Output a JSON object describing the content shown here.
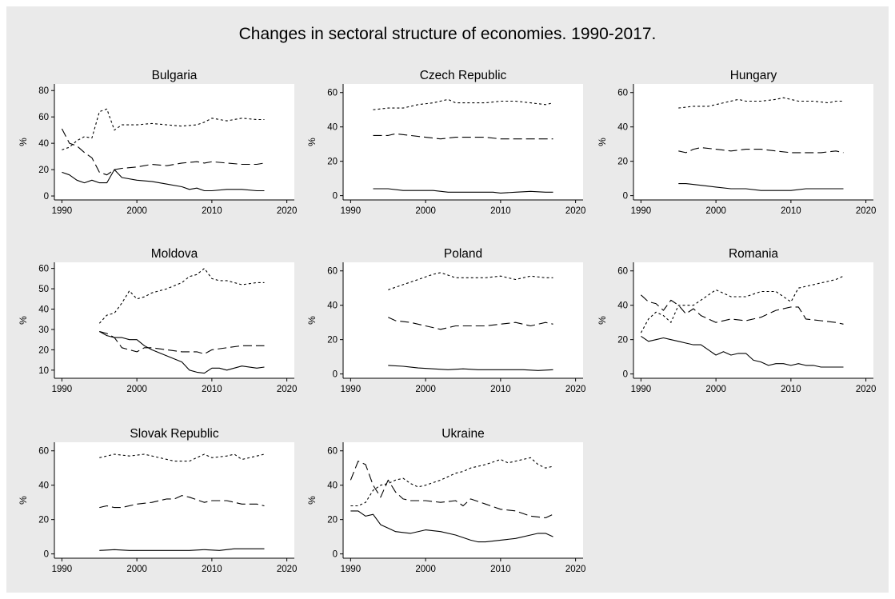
{
  "title": "Changes in sectoral structure of economies. 1990-2017.",
  "chart_data": [
    {
      "type": "line",
      "title": "Bulgaria",
      "ylabel": "%",
      "xlabel": "",
      "xticks": [
        1990,
        2000,
        2010,
        2020
      ],
      "yticks": [
        0,
        20,
        40,
        60,
        80
      ],
      "xlim": [
        1989,
        2021
      ],
      "ylim": [
        -3,
        85
      ],
      "grid": false,
      "series": [
        {
          "style": "short-dash",
          "x": [
            1990,
            1991,
            1992,
            1993,
            1994,
            1995,
            1996,
            1997,
            1998,
            2000,
            2002,
            2004,
            2006,
            2008,
            2009,
            2010,
            2012,
            2014,
            2016,
            2017
          ],
          "y": [
            35,
            37,
            42,
            45,
            44,
            64,
            66,
            50,
            54,
            54,
            55,
            54,
            53,
            54,
            56,
            59,
            57,
            59,
            58,
            58
          ]
        },
        {
          "style": "long-dash",
          "x": [
            1990,
            1991,
            1992,
            1993,
            1994,
            1995,
            1996,
            1997,
            1998,
            2000,
            2002,
            2004,
            2006,
            2008,
            2009,
            2010,
            2012,
            2014,
            2016,
            2017
          ],
          "y": [
            51,
            40,
            38,
            33,
            29,
            18,
            16,
            20,
            21,
            22,
            24,
            23,
            25,
            26,
            25,
            26,
            25,
            24,
            24,
            25
          ]
        },
        {
          "style": "solid",
          "x": [
            1990,
            1991,
            1992,
            1993,
            1994,
            1995,
            1996,
            1997,
            1998,
            2000,
            2002,
            2004,
            2006,
            2007,
            2008,
            2009,
            2010,
            2012,
            2014,
            2016,
            2017
          ],
          "y": [
            18,
            16,
            12,
            10,
            12,
            10,
            10,
            20,
            14,
            12,
            11,
            9,
            7,
            5,
            6,
            4,
            4,
            5,
            5,
            4,
            4
          ]
        }
      ]
    },
    {
      "type": "line",
      "title": "Czech Republic",
      "ylabel": "%",
      "xlabel": "",
      "xticks": [
        1990,
        2000,
        2010,
        2020
      ],
      "yticks": [
        0,
        20,
        40,
        60
      ],
      "xlim": [
        1989,
        2021
      ],
      "ylim": [
        -2.5,
        65
      ],
      "grid": false,
      "series": [
        {
          "style": "short-dash",
          "x": [
            1993,
            1995,
            1997,
            1999,
            2001,
            2003,
            2004,
            2006,
            2008,
            2010,
            2012,
            2014,
            2016,
            2017
          ],
          "y": [
            50,
            51,
            51,
            53,
            54,
            56,
            54,
            54,
            54,
            55,
            55,
            54,
            53,
            54
          ]
        },
        {
          "style": "long-dash",
          "x": [
            1993,
            1995,
            1996,
            1998,
            2000,
            2002,
            2004,
            2006,
            2008,
            2010,
            2012,
            2014,
            2016,
            2017
          ],
          "y": [
            35,
            35,
            36,
            35,
            34,
            33,
            34,
            34,
            34,
            33,
            33,
            33,
            33,
            33
          ]
        },
        {
          "style": "solid",
          "x": [
            1993,
            1995,
            1997,
            1999,
            2001,
            2003,
            2005,
            2007,
            2009,
            2010,
            2012,
            2014,
            2016,
            2017
          ],
          "y": [
            4,
            4,
            3,
            3,
            3,
            2,
            2,
            2,
            2,
            1.5,
            2,
            2.5,
            2,
            2
          ]
        }
      ]
    },
    {
      "type": "line",
      "title": "Hungary",
      "ylabel": "%",
      "xlabel": "",
      "xticks": [
        1990,
        2000,
        2010,
        2020
      ],
      "yticks": [
        0,
        20,
        40,
        60
      ],
      "xlim": [
        1989,
        2021
      ],
      "ylim": [
        -2.5,
        65
      ],
      "grid": false,
      "series": [
        {
          "style": "short-dash",
          "x": [
            1995,
            1997,
            1999,
            2001,
            2003,
            2004,
            2006,
            2008,
            2009,
            2011,
            2013,
            2015,
            2016,
            2017
          ],
          "y": [
            51,
            52,
            52,
            54,
            56,
            55,
            55,
            56,
            57,
            55,
            55,
            54,
            55,
            55
          ]
        },
        {
          "style": "long-dash",
          "x": [
            1995,
            1996,
            1997,
            1998,
            2000,
            2002,
            2004,
            2006,
            2008,
            2010,
            2012,
            2014,
            2016,
            2017
          ],
          "y": [
            26,
            25,
            27,
            28,
            27,
            26,
            27,
            27,
            26,
            25,
            25,
            25,
            26,
            25
          ]
        },
        {
          "style": "solid",
          "x": [
            1995,
            1996,
            1998,
            2000,
            2002,
            2004,
            2006,
            2008,
            2010,
            2012,
            2014,
            2016,
            2017
          ],
          "y": [
            7,
            7,
            6,
            5,
            4,
            4,
            3,
            3,
            3,
            4,
            4,
            4,
            4
          ]
        }
      ]
    },
    {
      "type": "line",
      "title": "Moldova",
      "ylabel": "%",
      "xlabel": "",
      "xticks": [
        1990,
        2000,
        2010,
        2020
      ],
      "yticks": [
        10,
        20,
        30,
        40,
        50,
        60
      ],
      "xlim": [
        1989,
        2021
      ],
      "ylim": [
        6,
        63
      ],
      "grid": false,
      "series": [
        {
          "style": "short-dash",
          "x": [
            1995,
            1996,
            1997,
            1998,
            1999,
            2000,
            2001,
            2002,
            2004,
            2006,
            2007,
            2008,
            2009,
            2010,
            2011,
            2012,
            2014,
            2016,
            2017
          ],
          "y": [
            33,
            37,
            38,
            43,
            49,
            45,
            46,
            48,
            50,
            53,
            56,
            57,
            60,
            55,
            54,
            54,
            52,
            53,
            53
          ]
        },
        {
          "style": "long-dash",
          "x": [
            1995,
            1996,
            1997,
            1998,
            1999,
            2000,
            2001,
            2002,
            2004,
            2006,
            2008,
            2009,
            2010,
            2012,
            2014,
            2016,
            2017
          ],
          "y": [
            29,
            28,
            26,
            21,
            20,
            19,
            21,
            21,
            20,
            19,
            19,
            18,
            20,
            21,
            22,
            22,
            22
          ]
        },
        {
          "style": "solid",
          "x": [
            1995,
            1996,
            1997,
            1998,
            1999,
            2000,
            2001,
            2002,
            2004,
            2006,
            2007,
            2008,
            2009,
            2010,
            2011,
            2012,
            2014,
            2016,
            2017
          ],
          "y": [
            29,
            27,
            26,
            26,
            25,
            25,
            22,
            20,
            17,
            14,
            10,
            9,
            8.5,
            11,
            11,
            10,
            12,
            11,
            11.5
          ]
        }
      ]
    },
    {
      "type": "line",
      "title": "Poland",
      "ylabel": "%",
      "xlabel": "",
      "xticks": [
        1990,
        2000,
        2010,
        2020
      ],
      "yticks": [
        0,
        20,
        40,
        60
      ],
      "xlim": [
        1989,
        2021
      ],
      "ylim": [
        -2.5,
        65
      ],
      "grid": false,
      "series": [
        {
          "style": "short-dash",
          "x": [
            1995,
            1997,
            1999,
            2001,
            2002,
            2004,
            2006,
            2008,
            2010,
            2012,
            2014,
            2016,
            2017
          ],
          "y": [
            49,
            52,
            55,
            58,
            59,
            56,
            56,
            56,
            57,
            55,
            57,
            56,
            56
          ]
        },
        {
          "style": "long-dash",
          "x": [
            1995,
            1996,
            1998,
            2000,
            2002,
            2004,
            2006,
            2008,
            2010,
            2012,
            2014,
            2016,
            2017
          ],
          "y": [
            33,
            31,
            30,
            28,
            26,
            28,
            28,
            28,
            29,
            30,
            28,
            30,
            29
          ]
        },
        {
          "style": "solid",
          "x": [
            1995,
            1997,
            1999,
            2001,
            2003,
            2005,
            2007,
            2009,
            2011,
            2013,
            2015,
            2017
          ],
          "y": [
            5,
            4.5,
            3.5,
            3,
            2.5,
            3,
            2.5,
            2.5,
            2.5,
            2.5,
            2,
            2.5
          ]
        }
      ]
    },
    {
      "type": "line",
      "title": "Romania",
      "ylabel": "%",
      "xlabel": "",
      "xticks": [
        1990,
        2000,
        2010,
        2020
      ],
      "yticks": [
        0,
        20,
        40,
        60
      ],
      "xlim": [
        1989,
        2021
      ],
      "ylim": [
        -2.5,
        65
      ],
      "grid": false,
      "series": [
        {
          "style": "short-dash",
          "x": [
            1990,
            1991,
            1992,
            1993,
            1994,
            1995,
            1996,
            1997,
            1998,
            2000,
            2002,
            2004,
            2006,
            2008,
            2010,
            2011,
            2012,
            2014,
            2016,
            2017
          ],
          "y": [
            24,
            32,
            36,
            34,
            30,
            40,
            40,
            40,
            43,
            49,
            45,
            45,
            48,
            48,
            42,
            50,
            51,
            53,
            55,
            57
          ]
        },
        {
          "style": "long-dash",
          "x": [
            1990,
            1991,
            1992,
            1993,
            1994,
            1995,
            1996,
            1997,
            1998,
            2000,
            2002,
            2004,
            2006,
            2008,
            2010,
            2011,
            2012,
            2014,
            2016,
            2017
          ],
          "y": [
            46,
            42,
            41,
            37,
            43,
            40,
            35,
            38,
            34,
            30,
            32,
            31,
            33,
            37,
            39,
            39,
            32,
            31,
            30,
            29
          ]
        },
        {
          "style": "solid",
          "x": [
            1990,
            1991,
            1992,
            1993,
            1994,
            1995,
            1996,
            1997,
            1998,
            1999,
            2000,
            2001,
            2002,
            2003,
            2004,
            2005,
            2006,
            2007,
            2008,
            2009,
            2010,
            2011,
            2012,
            2013,
            2014,
            2015,
            2016,
            2017
          ],
          "y": [
            22,
            19,
            20,
            21,
            20,
            19,
            18,
            17,
            17,
            14,
            11,
            13,
            11,
            12,
            12,
            8,
            7,
            5,
            6,
            6,
            5,
            6,
            5,
            5,
            4,
            4,
            4,
            4
          ]
        }
      ]
    },
    {
      "type": "line",
      "title": "Slovak Republic",
      "ylabel": "%",
      "xlabel": "",
      "xticks": [
        1990,
        2000,
        2010,
        2020
      ],
      "yticks": [
        0,
        20,
        40,
        60
      ],
      "xlim": [
        1989,
        2021
      ],
      "ylim": [
        -2.5,
        65
      ],
      "grid": false,
      "series": [
        {
          "style": "short-dash",
          "x": [
            1995,
            1996,
            1997,
            1999,
            2001,
            2003,
            2005,
            2007,
            2009,
            2010,
            2012,
            2013,
            2014,
            2016,
            2017
          ],
          "y": [
            56,
            57,
            58,
            57,
            58,
            56,
            54,
            54,
            58,
            56,
            57,
            58,
            55,
            57,
            58
          ]
        },
        {
          "style": "long-dash",
          "x": [
            1995,
            1996,
            1997,
            1998,
            2000,
            2002,
            2004,
            2005,
            2006,
            2007,
            2009,
            2010,
            2012,
            2014,
            2016,
            2017
          ],
          "y": [
            27,
            28,
            27,
            27,
            29,
            30,
            32,
            32,
            34,
            33,
            30,
            31,
            31,
            29,
            29,
            28
          ]
        },
        {
          "style": "solid",
          "x": [
            1995,
            1997,
            1999,
            2001,
            2003,
            2005,
            2007,
            2009,
            2011,
            2013,
            2015,
            2017
          ],
          "y": [
            2,
            2.5,
            2,
            2,
            2,
            2,
            2,
            2.5,
            2,
            3,
            3,
            3
          ]
        }
      ]
    },
    {
      "type": "line",
      "title": "Ukraine",
      "ylabel": "%",
      "xlabel": "",
      "xticks": [
        1990,
        2000,
        2010,
        2020
      ],
      "yticks": [
        0,
        20,
        40,
        60
      ],
      "xlim": [
        1989,
        2021
      ],
      "ylim": [
        -2.5,
        65
      ],
      "grid": false,
      "series": [
        {
          "style": "short-dash",
          "x": [
            1990,
            1991,
            1992,
            1993,
            1994,
            1995,
            1996,
            1997,
            1998,
            1999,
            2000,
            2002,
            2004,
            2005,
            2006,
            2008,
            2010,
            2011,
            2012,
            2014,
            2015,
            2016,
            2017
          ],
          "y": [
            28,
            28,
            30,
            37,
            40,
            41,
            43,
            44,
            41,
            39,
            40,
            43,
            47,
            48,
            50,
            52,
            55,
            53,
            54,
            56,
            52,
            50,
            51
          ]
        },
        {
          "style": "long-dash",
          "x": [
            1990,
            1991,
            1992,
            1993,
            1994,
            1995,
            1996,
            1997,
            1998,
            2000,
            2002,
            2004,
            2005,
            2006,
            2008,
            2010,
            2012,
            2014,
            2016,
            2017
          ],
          "y": [
            43,
            54,
            52,
            40,
            33,
            43,
            36,
            32,
            31,
            31,
            30,
            31,
            28,
            32,
            29,
            26,
            25,
            22,
            21,
            23
          ]
        },
        {
          "style": "solid",
          "x": [
            1990,
            1991,
            1992,
            1993,
            1994,
            1995,
            1996,
            1998,
            2000,
            2002,
            2004,
            2006,
            2007,
            2008,
            2010,
            2012,
            2014,
            2015,
            2016,
            2017
          ],
          "y": [
            25,
            25,
            22,
            23,
            17,
            15,
            13,
            12,
            14,
            13,
            11,
            8,
            7,
            7,
            8,
            9,
            11,
            12,
            12,
            10
          ]
        }
      ]
    }
  ]
}
